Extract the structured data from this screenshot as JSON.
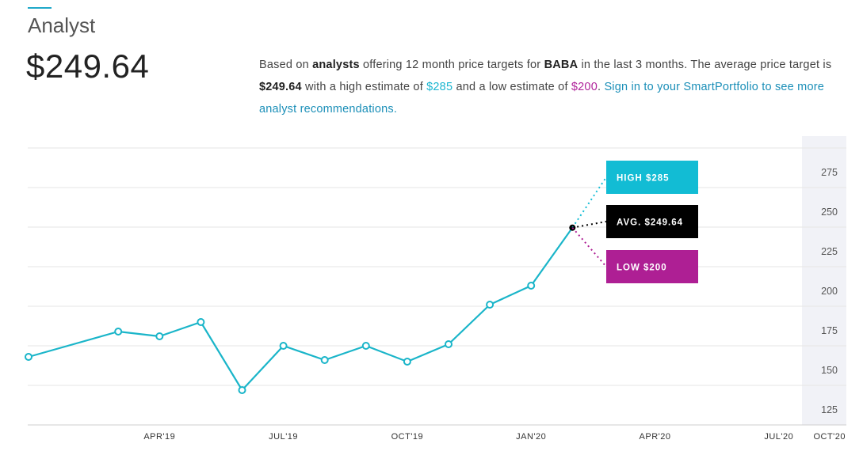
{
  "header": {
    "title": "Analyst",
    "price": "$249.64"
  },
  "summary": {
    "p1": "Based on ",
    "analysts": "analysts",
    "p2": " offering 12 month price targets for ",
    "ticker": "BABA",
    "p3": " in the last 3 months. The average price target is ",
    "avg": "$249.64",
    "p4": " with a high estimate of ",
    "high": "$285",
    "p5": " and a low estimate of ",
    "low": "$200",
    "p6": ". ",
    "signin": "Sign in to your SmartPortfolio to see more analyst recommendations."
  },
  "colors": {
    "line": "#1ab5c9",
    "high": "#12bcd4",
    "avg": "#000000",
    "low": "#ae1f94",
    "grid": "#e6e6e6",
    "forecast_bg": "#f1f2f7"
  },
  "chart_data": {
    "type": "line",
    "x_ticks": [
      "APR'19",
      "JUL'19",
      "OCT'19",
      "JAN'20",
      "APR'20",
      "JUL'20",
      "OCT'20"
    ],
    "y_ticks": [
      125,
      150,
      175,
      200,
      225,
      250,
      275
    ],
    "ylim": [
      125,
      300
    ],
    "series": [
      {
        "values": [
          {
            "x": "2019-02",
            "y": 168
          },
          {
            "x": "2019-03",
            "y": 184
          },
          {
            "x": "2019-04",
            "y": 181
          },
          {
            "x": "2019-05",
            "y": 190
          },
          {
            "x": "2019-06",
            "y": 147
          },
          {
            "x": "2019-07",
            "y": 175
          },
          {
            "x": "2019-08",
            "y": 166
          },
          {
            "x": "2019-09",
            "y": 175
          },
          {
            "x": "2019-10",
            "y": 165
          },
          {
            "x": "2019-11",
            "y": 176
          },
          {
            "x": "2019-12",
            "y": 201
          },
          {
            "x": "2020-01",
            "y": 213
          },
          {
            "x": "2020-02",
            "y": 249.64
          }
        ]
      }
    ],
    "targets": [
      {
        "label": "HIGH $285",
        "value": 285,
        "color": "#12bcd4"
      },
      {
        "label": "AVG. $249.64",
        "value": 249.64,
        "color": "#000000"
      },
      {
        "label": "LOW $200",
        "value": 200,
        "color": "#ae1f94"
      }
    ]
  }
}
